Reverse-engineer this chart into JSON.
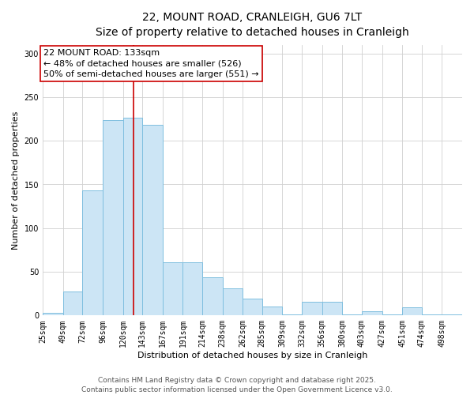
{
  "title": "22, MOUNT ROAD, CRANLEIGH, GU6 7LT",
  "subtitle": "Size of property relative to detached houses in Cranleigh",
  "xlabel": "Distribution of detached houses by size in Cranleigh",
  "ylabel": "Number of detached properties",
  "bin_labels": [
    "25sqm",
    "49sqm",
    "72sqm",
    "96sqm",
    "120sqm",
    "143sqm",
    "167sqm",
    "191sqm",
    "214sqm",
    "238sqm",
    "262sqm",
    "285sqm",
    "309sqm",
    "332sqm",
    "356sqm",
    "380sqm",
    "403sqm",
    "427sqm",
    "451sqm",
    "474sqm",
    "498sqm"
  ],
  "bin_edges": [
    25,
    49,
    72,
    96,
    120,
    143,
    167,
    191,
    214,
    238,
    262,
    285,
    309,
    332,
    356,
    380,
    403,
    427,
    451,
    474,
    498,
    522
  ],
  "bar_values": [
    3,
    27,
    143,
    224,
    226,
    218,
    61,
    61,
    44,
    31,
    19,
    10,
    1,
    16,
    16,
    1,
    5,
    1,
    9,
    1,
    1
  ],
  "bar_facecolor": "#cce5f5",
  "bar_edgecolor": "#7fbfdf",
  "property_size": 133,
  "vline_color": "#cc0000",
  "annotation_line1": "22 MOUNT ROAD: 133sqm",
  "annotation_line2": "← 48% of detached houses are smaller (526)",
  "annotation_line3": "50% of semi-detached houses are larger (551) →",
  "annotation_box_edgecolor": "#cc0000",
  "ylim": [
    0,
    310
  ],
  "yticks": [
    0,
    50,
    100,
    150,
    200,
    250,
    300
  ],
  "footer_line1": "Contains HM Land Registry data © Crown copyright and database right 2025.",
  "footer_line2": "Contains public sector information licensed under the Open Government Licence v3.0.",
  "grid_color": "#d0d0d0",
  "title_fontsize": 10,
  "subtitle_fontsize": 9,
  "axis_label_fontsize": 8,
  "tick_fontsize": 7,
  "annotation_fontsize": 8,
  "footer_fontsize": 6.5
}
